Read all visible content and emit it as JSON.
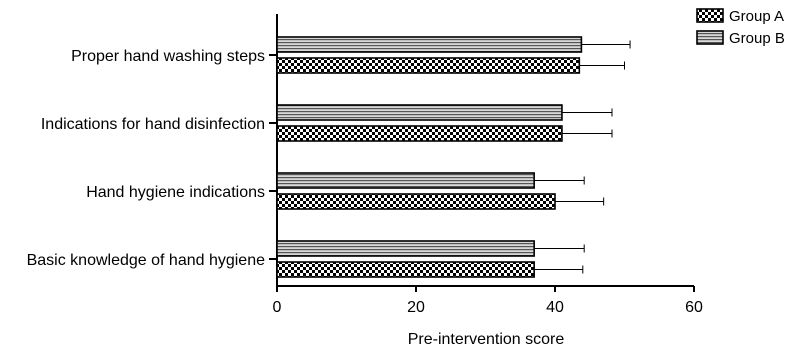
{
  "chart_data": {
    "type": "bar",
    "orientation": "horizontal",
    "categories": [
      "Proper hand washing steps",
      "Indications for hand disinfection",
      "Hand hygiene indications",
      "Basic knowledge of hand hygiene"
    ],
    "series": [
      {
        "name": "Group A",
        "pattern": "checkerboard",
        "values": [
          43.5,
          41.0,
          40.0,
          37.0
        ],
        "errors": [
          6.5,
          7.2,
          7.0,
          7.0
        ]
      },
      {
        "name": "Group B",
        "pattern": "horizontal-stripes",
        "values": [
          43.8,
          41.0,
          37.0,
          37.0
        ],
        "errors": [
          7.0,
          7.2,
          7.2,
          7.2
        ]
      }
    ],
    "title": "",
    "xlabel": "Pre-intervention score",
    "ylabel": "",
    "xlim": [
      0,
      60
    ],
    "xticks": [
      "0",
      "20",
      "40",
      "60"
    ],
    "grid": false,
    "legend_position": "top-right",
    "colors": {
      "bar_stroke": "#000000",
      "background": "#ffffff"
    }
  }
}
